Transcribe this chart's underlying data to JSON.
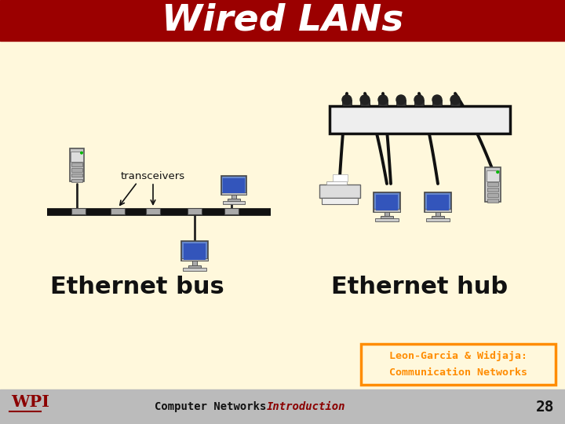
{
  "title": "Wired LANs",
  "title_bg": "#9B0000",
  "title_color": "#FFFFFF",
  "title_fontsize": 34,
  "content_bg": "#FFF8DC",
  "footer_bg": "#BBBBBB",
  "label_bus": "Ethernet bus",
  "label_hub": "Ethernet hub",
  "label_transceivers": "transceivers",
  "label_lg1": "Leon-Garcia & Widjaja:",
  "label_lg2": "Communication Networks",
  "label_footer_cn": "Computer Networks",
  "label_footer_intro": "Introduction",
  "label_page": "28",
  "lg_box_edgecolor": "#FF8C00",
  "footer_text_color": "#111111",
  "intro_color": "#8B0000",
  "wpi_red": "#8B0000",
  "label_color": "#111111",
  "label_fontsize": 22,
  "lg_fontsize": 9,
  "footer_fontsize": 10
}
